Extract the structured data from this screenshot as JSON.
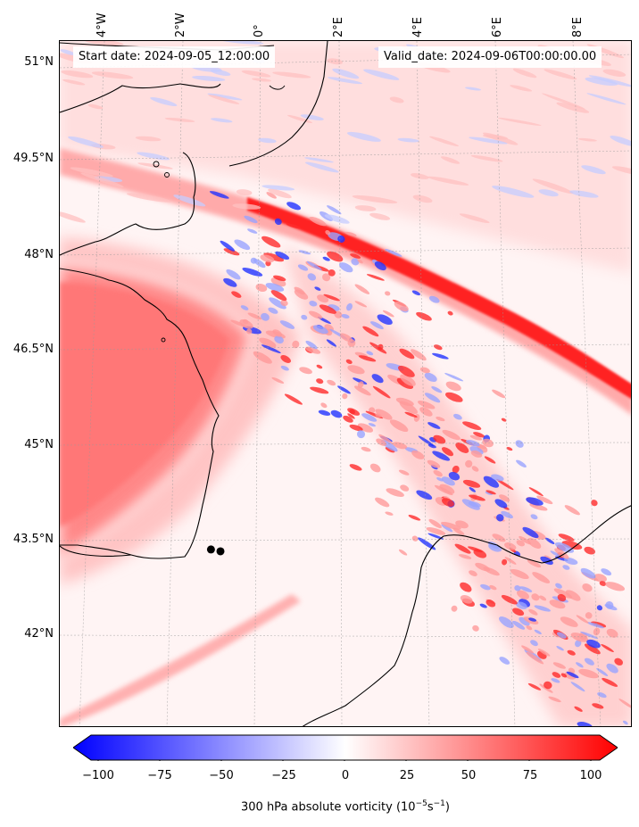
{
  "header": {
    "start_date_label": "Start date: 2024-09-05_12:00:00",
    "valid_date_label": "Valid_date: 2024-09-06T00:00:00.00"
  },
  "map": {
    "latitude_labels": [
      "51°N",
      "49.5°N",
      "48°N",
      "46.5°N",
      "45°N",
      "43.5°N",
      "42°N"
    ],
    "longitude_labels": [
      "4°W",
      "2°W",
      "0°",
      "2°E",
      "4°E",
      "6°E",
      "8°E"
    ],
    "markers": [
      {
        "name": "marker-1",
        "lon": -1.12,
        "lat": 43.36
      },
      {
        "name": "marker-2",
        "lon": -0.88,
        "lat": 43.33
      }
    ]
  },
  "colorbar": {
    "title": "300 hPa absolute vorticity (10",
    "title_exp": "−5",
    "title_unit": "s",
    "title_exp2": "−1",
    "title_end": ")",
    "min": -100,
    "max": 100,
    "tick_labels": [
      "−100",
      "−75",
      "−50",
      "−25",
      "0",
      "25",
      "50",
      "75",
      "100"
    ],
    "colors": {
      "low": "#0000ff",
      "mid": "#ffffff",
      "high": "#ff0000"
    }
  }
}
